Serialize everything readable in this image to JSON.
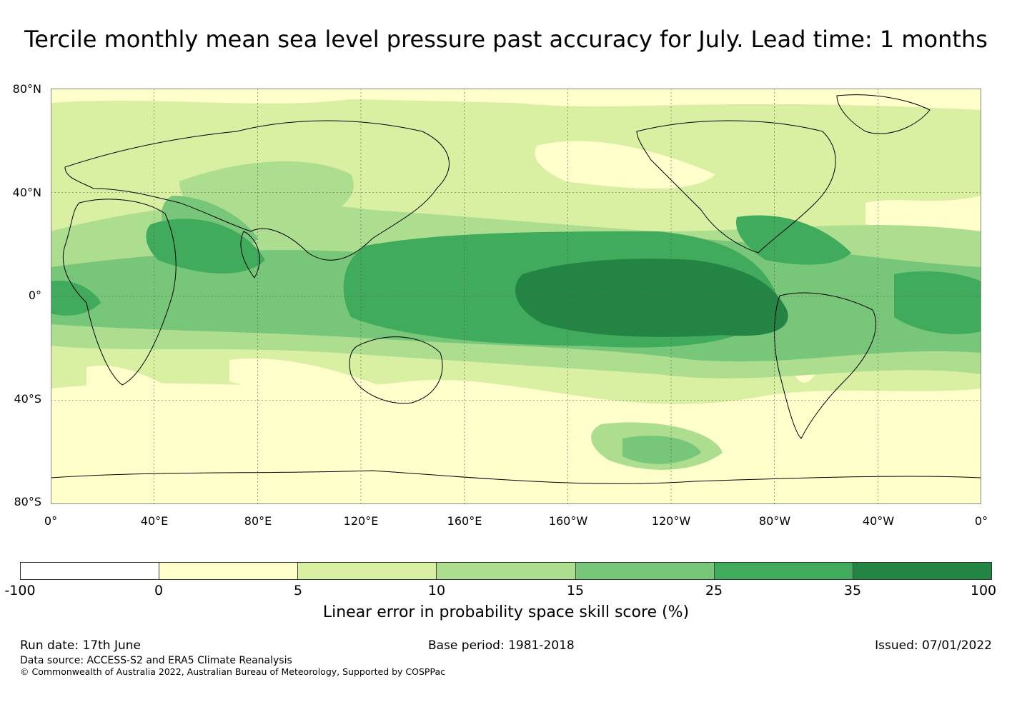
{
  "title": "Tercile monthly mean sea level pressure past accuracy for July. Lead time: 1 months",
  "map": {
    "lat_labels": [
      "80°N",
      "40°N",
      "0°",
      "40°S",
      "80°S"
    ],
    "lon_labels": [
      "0°",
      "40°E",
      "80°E",
      "120°E",
      "160°E",
      "160°W",
      "120°W",
      "80°W",
      "40°W",
      "0°"
    ],
    "palette": {
      "lt0": "#ffffff",
      "b0_5": "#ffffcc",
      "b5_10": "#d9f0a3",
      "b10_15": "#addd8e",
      "b15_25": "#78c679",
      "b25_35": "#41ab5d",
      "b35_100": "#238443",
      "land_line": "#000000",
      "grid_line": "#555555"
    }
  },
  "colorbar": {
    "colors": [
      "#ffffff",
      "#ffffcc",
      "#d9f0a3",
      "#addd8e",
      "#78c679",
      "#41ab5d",
      "#238443"
    ],
    "ticks": [
      "-100",
      "0",
      "5",
      "10",
      "15",
      "25",
      "35",
      "100"
    ],
    "label": "Linear error in probability space skill score (%)"
  },
  "footer": {
    "run_date": "Run date: 17th June",
    "base_period": "Base period: 1981-2018",
    "issued": "Issued: 07/01/2022",
    "data_source": "Data source: ACCESS-S2 and ERA5 Climate Reanalysis",
    "copyright": "© Commonwealth of Australia 2022, Australian Bureau of Meteorology, Supported by COSPPac"
  }
}
